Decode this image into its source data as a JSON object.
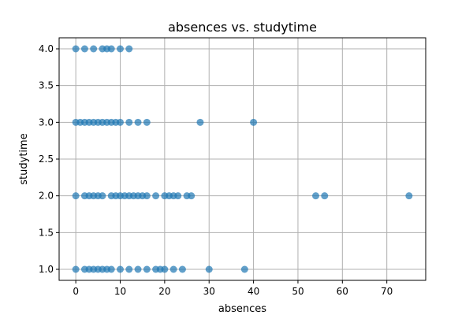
{
  "chart_data": {
    "type": "scatter",
    "title": "absences vs. studytime",
    "xlabel": "absences",
    "ylabel": "studytime",
    "xlim": [
      -3.75,
      78.75
    ],
    "ylim": [
      0.85,
      4.15
    ],
    "xticks": [
      0,
      10,
      20,
      30,
      40,
      50,
      60,
      70
    ],
    "yticks": [
      1.0,
      1.5,
      2.0,
      2.5,
      3.0,
      3.5,
      4.0
    ],
    "ytick_labels": [
      "1.0",
      "1.5",
      "2.0",
      "2.5",
      "3.0",
      "3.5",
      "4.0"
    ],
    "grid": true,
    "marker_color": "#1f77b4",
    "marker_alpha": 0.7,
    "points": [
      {
        "x": 0,
        "y": 4
      },
      {
        "x": 2,
        "y": 4
      },
      {
        "x": 4,
        "y": 4
      },
      {
        "x": 6,
        "y": 4
      },
      {
        "x": 7,
        "y": 4
      },
      {
        "x": 8,
        "y": 4
      },
      {
        "x": 10,
        "y": 4
      },
      {
        "x": 12,
        "y": 4
      },
      {
        "x": 0,
        "y": 3
      },
      {
        "x": 1,
        "y": 3
      },
      {
        "x": 2,
        "y": 3
      },
      {
        "x": 3,
        "y": 3
      },
      {
        "x": 4,
        "y": 3
      },
      {
        "x": 5,
        "y": 3
      },
      {
        "x": 6,
        "y": 3
      },
      {
        "x": 7,
        "y": 3
      },
      {
        "x": 8,
        "y": 3
      },
      {
        "x": 9,
        "y": 3
      },
      {
        "x": 10,
        "y": 3
      },
      {
        "x": 12,
        "y": 3
      },
      {
        "x": 14,
        "y": 3
      },
      {
        "x": 16,
        "y": 3
      },
      {
        "x": 28,
        "y": 3
      },
      {
        "x": 40,
        "y": 3
      },
      {
        "x": 0,
        "y": 2
      },
      {
        "x": 2,
        "y": 2
      },
      {
        "x": 3,
        "y": 2
      },
      {
        "x": 4,
        "y": 2
      },
      {
        "x": 5,
        "y": 2
      },
      {
        "x": 6,
        "y": 2
      },
      {
        "x": 8,
        "y": 2
      },
      {
        "x": 9,
        "y": 2
      },
      {
        "x": 10,
        "y": 2
      },
      {
        "x": 11,
        "y": 2
      },
      {
        "x": 12,
        "y": 2
      },
      {
        "x": 13,
        "y": 2
      },
      {
        "x": 14,
        "y": 2
      },
      {
        "x": 15,
        "y": 2
      },
      {
        "x": 16,
        "y": 2
      },
      {
        "x": 18,
        "y": 2
      },
      {
        "x": 20,
        "y": 2
      },
      {
        "x": 21,
        "y": 2
      },
      {
        "x": 22,
        "y": 2
      },
      {
        "x": 23,
        "y": 2
      },
      {
        "x": 25,
        "y": 2
      },
      {
        "x": 26,
        "y": 2
      },
      {
        "x": 54,
        "y": 2
      },
      {
        "x": 56,
        "y": 2
      },
      {
        "x": 75,
        "y": 2
      },
      {
        "x": 0,
        "y": 1
      },
      {
        "x": 2,
        "y": 1
      },
      {
        "x": 3,
        "y": 1
      },
      {
        "x": 4,
        "y": 1
      },
      {
        "x": 5,
        "y": 1
      },
      {
        "x": 6,
        "y": 1
      },
      {
        "x": 7,
        "y": 1
      },
      {
        "x": 8,
        "y": 1
      },
      {
        "x": 10,
        "y": 1
      },
      {
        "x": 12,
        "y": 1
      },
      {
        "x": 14,
        "y": 1
      },
      {
        "x": 16,
        "y": 1
      },
      {
        "x": 18,
        "y": 1
      },
      {
        "x": 19,
        "y": 1
      },
      {
        "x": 20,
        "y": 1
      },
      {
        "x": 22,
        "y": 1
      },
      {
        "x": 24,
        "y": 1
      },
      {
        "x": 30,
        "y": 1
      },
      {
        "x": 38,
        "y": 1
      }
    ]
  }
}
